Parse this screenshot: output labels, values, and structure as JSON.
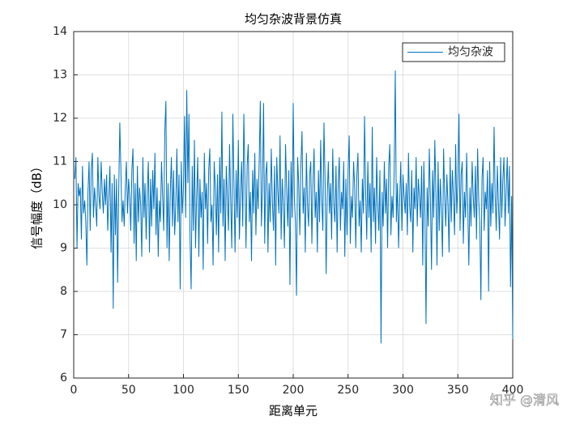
{
  "chart_data": {
    "type": "line",
    "title": "均匀杂波背景仿真",
    "xlabel": "距离单元",
    "ylabel": "信号幅度（dB）",
    "watermark": "知乎 @清风",
    "xlim": [
      0,
      400
    ],
    "ylim": [
      6,
      14
    ],
    "xticks": [
      0,
      50,
      100,
      150,
      200,
      250,
      300,
      350,
      400
    ],
    "yticks": [
      6,
      7,
      8,
      9,
      10,
      11,
      12,
      13,
      14
    ],
    "grid": true,
    "legend": "northeast",
    "x": [
      1,
      2,
      3,
      4,
      5,
      6,
      7,
      8,
      9,
      10,
      11,
      12,
      13,
      14,
      15,
      16,
      17,
      18,
      19,
      20,
      21,
      22,
      23,
      24,
      25,
      26,
      27,
      28,
      29,
      30,
      31,
      32,
      33,
      34,
      35,
      36,
      37,
      38,
      39,
      40,
      41,
      42,
      43,
      44,
      45,
      46,
      47,
      48,
      49,
      50,
      51,
      52,
      53,
      54,
      55,
      56,
      57,
      58,
      59,
      60,
      61,
      62,
      63,
      64,
      65,
      66,
      67,
      68,
      69,
      70,
      71,
      72,
      73,
      74,
      75,
      76,
      77,
      78,
      79,
      80,
      81,
      82,
      83,
      84,
      85,
      86,
      87,
      88,
      89,
      90,
      91,
      92,
      93,
      94,
      95,
      96,
      97,
      98,
      99,
      100,
      101,
      102,
      103,
      104,
      105,
      106,
      107,
      108,
      109,
      110,
      111,
      112,
      113,
      114,
      115,
      116,
      117,
      118,
      119,
      120,
      121,
      122,
      123,
      124,
      125,
      126,
      127,
      128,
      129,
      130,
      131,
      132,
      133,
      134,
      135,
      136,
      137,
      138,
      139,
      140,
      141,
      142,
      143,
      144,
      145,
      146,
      147,
      148,
      149,
      150,
      151,
      152,
      153,
      154,
      155,
      156,
      157,
      158,
      159,
      160,
      161,
      162,
      163,
      164,
      165,
      166,
      167,
      168,
      169,
      170,
      171,
      172,
      173,
      174,
      175,
      176,
      177,
      178,
      179,
      180,
      181,
      182,
      183,
      184,
      185,
      186,
      187,
      188,
      189,
      190,
      191,
      192,
      193,
      194,
      195,
      196,
      197,
      198,
      199,
      200,
      201,
      202,
      203,
      204,
      205,
      206,
      207,
      208,
      209,
      210,
      211,
      212,
      213,
      214,
      215,
      216,
      217,
      218,
      219,
      220,
      221,
      222,
      223,
      224,
      225,
      226,
      227,
      228,
      229,
      230,
      231,
      232,
      233,
      234,
      235,
      236,
      237,
      238,
      239,
      240,
      241,
      242,
      243,
      244,
      245,
      246,
      247,
      248,
      249,
      250,
      251,
      252,
      253,
      254,
      255,
      256,
      257,
      258,
      259,
      260,
      261,
      262,
      263,
      264,
      265,
      266,
      267,
      268,
      269,
      270,
      271,
      272,
      273,
      274,
      275,
      276,
      277,
      278,
      279,
      280,
      281,
      282,
      283,
      284,
      285,
      286,
      287,
      288,
      289,
      290,
      291,
      292,
      293,
      294,
      295,
      296,
      297,
      298,
      299,
      300,
      301,
      302,
      303,
      304,
      305,
      306,
      307,
      308,
      309,
      310,
      311,
      312,
      313,
      314,
      315,
      316,
      317,
      318,
      319,
      320,
      321,
      322,
      323,
      324,
      325,
      326,
      327,
      328,
      329,
      330,
      331,
      332,
      333,
      334,
      335,
      336,
      337,
      338,
      339,
      340,
      341,
      342,
      343,
      344,
      345,
      346,
      347,
      348,
      349,
      350,
      351,
      352,
      353,
      354,
      355,
      356,
      357,
      358,
      359,
      360,
      361,
      362,
      363,
      364,
      365,
      366,
      367,
      368,
      369,
      370,
      371,
      372,
      373,
      374,
      375,
      376,
      377,
      378,
      379,
      380,
      381,
      382,
      383,
      384,
      385,
      386,
      387,
      388,
      389,
      390,
      391,
      392,
      393,
      394,
      395,
      396,
      397,
      398,
      399,
      400
    ],
    "series": [
      {
        "name": "均匀杂波",
        "color": "#0072bd",
        "values": [
          10.6,
          11.1,
          9.0,
          10.5,
          10.2,
          10.4,
          9.2,
          10.9,
          9.8,
          10.1,
          9.6,
          8.6,
          10.3,
          11.0,
          9.4,
          10.8,
          11.2,
          9.7,
          10.4,
          10.0,
          9.5,
          11.1,
          10.2,
          9.9,
          11.0,
          10.3,
          9.8,
          10.6,
          10.0,
          10.7,
          9.4,
          10.2,
          10.9,
          8.9,
          10.5,
          7.6,
          10.7,
          9.3,
          10.6,
          8.2,
          10.3,
          11.9,
          10.8,
          9.6,
          10.1,
          9.5,
          10.4,
          11.0,
          9.8,
          10.6,
          10.2,
          9.4,
          10.8,
          11.3,
          9.1,
          10.5,
          8.7,
          10.9,
          9.6,
          10.4,
          10.0,
          8.8,
          11.1,
          9.7,
          10.5,
          9.2,
          10.3,
          11.0,
          8.9,
          10.6,
          9.5,
          10.8,
          9.9,
          11.2,
          9.3,
          10.4,
          8.8,
          10.1,
          9.6,
          11.0,
          10.2,
          9.4,
          11.7,
          12.4,
          9.0,
          10.5,
          8.7,
          10.3,
          11.1,
          9.5,
          10.8,
          9.3,
          10.0,
          11.3,
          9.6,
          10.7,
          8.05,
          11.0,
          9.8,
          10.4,
          12.05,
          9.7,
          12.65,
          10.5,
          12.1,
          9.2,
          8.05,
          10.9,
          9.4,
          11.5,
          9.0,
          10.2,
          11.1,
          8.8,
          10.6,
          9.7,
          10.3,
          8.5,
          11.2,
          9.9,
          10.5,
          9.1,
          10.8,
          11.3,
          9.6,
          10.0,
          8.6,
          11.0,
          10.4,
          9.3,
          10.7,
          8.9,
          11.1,
          9.8,
          12.15,
          9.5,
          10.6,
          8.7,
          10.9,
          10.2,
          9.4,
          11.4,
          10.1,
          9.0,
          12.1,
          10.5,
          8.9,
          10.8,
          9.7,
          11.5,
          9.2,
          10.3,
          11.0,
          9.5,
          12.1,
          10.6,
          9.0,
          10.9,
          11.4,
          9.6,
          10.3,
          8.7,
          10.8,
          9.8,
          11.2,
          9.3,
          10.6,
          9.9,
          11.0,
          12.4,
          9.5,
          10.4,
          12.35,
          9.1,
          10.7,
          11.0,
          8.9,
          10.5,
          9.6,
          11.3,
          10.1,
          9.4,
          10.9,
          8.6,
          11.1,
          10.3,
          9.8,
          11.6,
          9.2,
          10.6,
          10.0,
          9.0,
          11.4,
          10.4,
          9.5,
          10.8,
          8.15,
          11.0,
          9.7,
          12.35,
          10.2,
          9.6,
          7.9,
          11.1,
          10.5,
          9.3,
          10.9,
          11.7,
          9.8,
          10.4,
          8.9,
          11.2,
          10.0,
          9.5,
          10.7,
          11.0,
          9.1,
          10.5,
          11.3,
          9.7,
          10.3,
          8.9,
          10.8,
          9.6,
          11.5,
          10.1,
          9.4,
          11.9,
          10.6,
          8.4,
          10.2,
          11.0,
          9.8,
          10.5,
          9.2,
          11.3,
          10.0,
          9.6,
          10.9,
          8.9,
          10.5,
          11.1,
          9.4,
          10.3,
          9.9,
          11.0,
          8.8,
          10.6,
          9.3,
          10.8,
          11.6,
          9.1,
          10.2,
          9.7,
          11.0,
          10.4,
          9.0,
          10.7,
          11.2,
          9.5,
          10.1,
          8.9,
          10.6,
          9.8,
          12.05,
          10.3,
          9.2,
          11.0,
          9.7,
          10.5,
          8.9,
          11.8,
          9.6,
          10.4,
          9.1,
          11.1,
          10.0,
          9.4,
          10.8,
          6.8,
          10.3,
          9.5,
          11.0,
          9.8,
          10.6,
          9.0,
          10.9,
          11.4,
          9.3,
          10.2,
          9.7,
          10.8,
          13.1,
          9.6,
          10.5,
          9.0,
          10.1,
          11.0,
          9.4,
          10.7,
          10.2,
          9.8,
          10.5,
          9.3,
          11.2,
          10.0,
          9.6,
          10.8,
          8.9,
          10.4,
          9.9,
          11.1,
          9.5,
          10.6,
          10.2,
          9.7,
          10.9,
          8.6,
          11.0,
          9.8,
          7.25,
          10.4,
          9.5,
          11.3,
          10.1,
          8.5,
          10.8,
          9.7,
          11.5,
          10.3,
          8.6,
          11.0,
          9.4,
          10.6,
          9.9,
          8.8,
          11.3,
          10.2,
          9.5,
          10.7,
          10.0,
          8.9,
          11.1,
          9.6,
          10.8,
          10.2,
          9.3,
          11.4,
          9.8,
          10.5,
          12.1,
          9.4,
          10.7,
          11.0,
          9.1,
          10.3,
          9.7,
          11.2,
          10.0,
          8.6,
          10.4,
          9.5,
          11.0,
          10.2,
          9.7,
          10.9,
          9.2,
          11.3,
          10.1,
          9.6,
          7.8,
          10.6,
          11.1,
          9.4,
          10.3,
          9.9,
          10.8,
          8.0,
          11.0,
          9.5,
          10.5,
          9.8,
          11.8,
          10.2,
          9.4,
          10.9,
          10.0,
          9.2,
          11.1,
          9.7,
          10.6,
          11.1,
          9.5,
          10.3,
          11.1,
          9.8,
          10.9,
          8.1,
          10.2,
          6.9
        ]
      }
    ]
  }
}
